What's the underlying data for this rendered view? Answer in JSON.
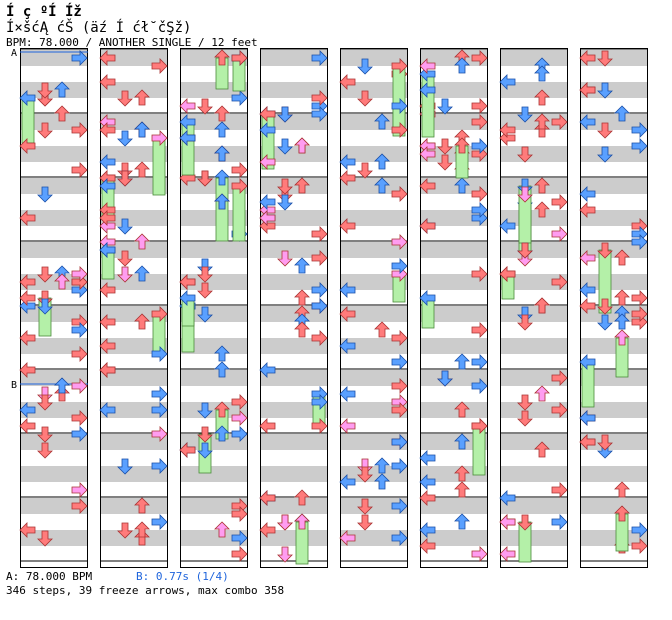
{
  "header": {
    "title": "Í ç ºÍ Íž",
    "subtitle": "Í×šćĄ ćŠ (äź Í ćł˘čŞž)",
    "info": "BPM: 78.000 / ANOTHER SINGLE / 12 feet"
  },
  "sections": [
    {
      "label": "A"
    },
    {
      "label": "B"
    }
  ],
  "footer": {
    "bpm_a": "A: 78.000 BPM",
    "bpm_b": "B: 0.77s (1/4)",
    "stats": "346 steps, 39 freeze arrows, max combo 358"
  },
  "colors": {
    "red": "#ff7b7b",
    "blue": "#5aa0ff",
    "pink": "#ff9cf0",
    "freeze": "#b4f0a8",
    "stripe": "#cccccc",
    "info_blue": "#1e64dc"
  },
  "chart_data": {
    "type": "step-chart",
    "columns": 8,
    "lanes": [
      "left",
      "down",
      "up",
      "right"
    ],
    "lane_directions": [
      "left-arrow-icon",
      "down-arrow-icon",
      "up-arrow-icon",
      "right-arrow-icon"
    ],
    "freeze_count": 39,
    "steps_total": 346,
    "notes": [
      [
        [
          0,
          3,
          0
        ],
        [
          0,
          1,
          0
        ],
        [
          0,
          3,
          1
        ],
        [
          0,
          2,
          0
        ],
        [
          0,
          0,
          0
        ],
        [
          0,
          0,
          1
        ],
        [
          0,
          2,
          1
        ],
        [
          0,
          1,
          1
        ],
        [
          0,
          3,
          2
        ],
        [
          0,
          2,
          2
        ],
        [
          0,
          1,
          2
        ],
        [
          0,
          0,
          2
        ],
        [
          0,
          3,
          3
        ],
        [
          0,
          1,
          3
        ],
        [
          0,
          2,
          3
        ],
        [
          0,
          0,
          3
        ]
      ],
      [
        [
          1,
          2,
          0
        ],
        [
          1,
          0,
          0
        ],
        [
          1,
          3,
          1
        ],
        [
          1,
          1,
          1
        ],
        [
          1,
          2,
          2
        ],
        [
          1,
          3,
          2
        ],
        [
          1,
          0,
          3
        ],
        [
          1,
          1,
          3
        ],
        [
          1,
          2,
          3
        ],
        [
          1,
          3,
          0
        ],
        [
          1,
          1,
          0
        ],
        [
          1,
          0,
          1
        ],
        [
          1,
          2,
          1
        ],
        [
          1,
          0,
          2
        ],
        [
          1,
          1,
          2
        ],
        [
          1,
          3,
          3
        ]
      ],
      [
        [
          2,
          3,
          0
        ],
        [
          2,
          0,
          0
        ],
        [
          2,
          1,
          1
        ],
        [
          2,
          2,
          1
        ],
        [
          2,
          3,
          2
        ],
        [
          2,
          0,
          2
        ],
        [
          2,
          1,
          3
        ],
        [
          2,
          2,
          3
        ],
        [
          2,
          0,
          3
        ],
        [
          2,
          2,
          0
        ],
        [
          2,
          1,
          0
        ],
        [
          2,
          0,
          1
        ],
        [
          2,
          3,
          1
        ],
        [
          2,
          1,
          2
        ],
        [
          2,
          2,
          2
        ],
        [
          2,
          3,
          3
        ]
      ],
      [
        [
          3,
          0,
          0
        ],
        [
          3,
          1,
          1
        ],
        [
          3,
          2,
          2
        ],
        [
          3,
          3,
          3
        ],
        [
          3,
          1,
          0
        ],
        [
          3,
          3,
          0
        ],
        [
          3,
          2,
          1
        ],
        [
          3,
          0,
          2
        ],
        [
          3,
          1,
          3
        ],
        [
          3,
          3,
          1
        ],
        [
          3,
          0,
          1
        ],
        [
          3,
          2,
          3
        ]
      ],
      [
        [
          4,
          3,
          0
        ],
        [
          4,
          1,
          0
        ],
        [
          4,
          0,
          1
        ],
        [
          4,
          2,
          1
        ],
        [
          4,
          3,
          2
        ],
        [
          4,
          1,
          3
        ],
        [
          4,
          0,
          2
        ],
        [
          4,
          2,
          3
        ],
        [
          4,
          0,
          0
        ],
        [
          4,
          2,
          2
        ],
        [
          4,
          3,
          3
        ],
        [
          4,
          1,
          1
        ]
      ],
      [
        [
          5,
          0,
          0
        ],
        [
          5,
          2,
          1
        ],
        [
          5,
          3,
          0
        ],
        [
          5,
          1,
          2
        ],
        [
          5,
          0,
          3
        ],
        [
          5,
          2,
          0
        ],
        [
          5,
          3,
          2
        ],
        [
          5,
          1,
          1
        ],
        [
          5,
          2,
          3
        ],
        [
          5,
          0,
          1
        ],
        [
          5,
          3,
          3
        ],
        [
          5,
          1,
          3
        ],
        [
          5,
          0,
          2
        ],
        [
          5,
          2,
          2
        ],
        [
          5,
          3,
          1
        ],
        [
          5,
          1,
          0
        ]
      ],
      [
        [
          6,
          0,
          0
        ],
        [
          6,
          1,
          0
        ],
        [
          6,
          3,
          0
        ],
        [
          6,
          2,
          1
        ],
        [
          6,
          0,
          1
        ],
        [
          6,
          3,
          1
        ],
        [
          6,
          1,
          2
        ],
        [
          6,
          2,
          2
        ],
        [
          6,
          0,
          2
        ],
        [
          6,
          3,
          2
        ],
        [
          6,
          1,
          3
        ],
        [
          6,
          2,
          3
        ],
        [
          6,
          0,
          3
        ],
        [
          6,
          3,
          3
        ],
        [
          6,
          2,
          0
        ],
        [
          6,
          1,
          1
        ]
      ],
      [
        [
          7,
          0,
          0
        ],
        [
          7,
          2,
          0
        ],
        [
          7,
          3,
          1
        ],
        [
          7,
          1,
          1
        ],
        [
          7,
          0,
          2
        ],
        [
          7,
          3,
          2
        ],
        [
          7,
          2,
          2
        ],
        [
          7,
          1,
          3
        ],
        [
          7,
          0,
          3
        ],
        [
          7,
          3,
          3
        ],
        [
          7,
          1,
          0
        ],
        [
          7,
          0,
          1
        ],
        [
          7,
          2,
          1
        ],
        [
          7,
          1,
          2
        ],
        [
          7,
          2,
          3
        ],
        [
          7,
          3,
          0
        ]
      ]
    ]
  }
}
